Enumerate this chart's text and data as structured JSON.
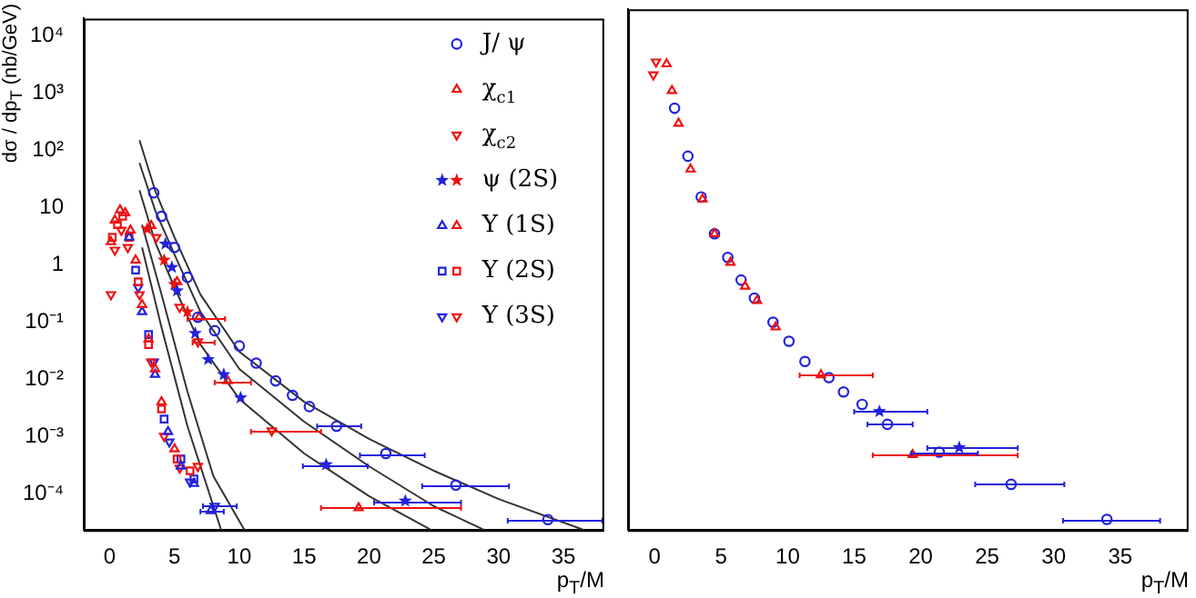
{
  "chart_data": [
    {
      "type": "scatter",
      "ylabel": "dσ / dp$_{T}$ (nb/GeV)",
      "xlabel": "p$_{T}$/M",
      "log": "y",
      "legend": "top right",
      "xlim": [
        -2,
        38
      ],
      "xticks": [
        0,
        5,
        10,
        15,
        20,
        25,
        30,
        35
      ],
      "ylim": [
        2.3e-05,
        20000
      ],
      "yticks": [
        {
          "value": 0.0001,
          "label": "10⁻⁴"
        },
        {
          "value": 0.001,
          "label": "10⁻³"
        },
        {
          "value": 0.01,
          "label": "10⁻²"
        },
        {
          "value": 0.1,
          "label": "10⁻¹"
        },
        1,
        10,
        {
          "value": 100,
          "label": "10²"
        },
        {
          "value": 1000,
          "label": "10³"
        },
        {
          "value": 10000,
          "label": "10⁴"
        }
      ],
      "series": [
        {
          "name": "J/ ψ",
          "color": "#2222dd",
          "marker": "circle",
          "x": [
            3.4,
            4,
            5,
            6,
            6.8,
            8.1,
            10,
            11.3,
            12.8,
            14.1,
            15.4,
            17.5,
            21.3,
            26.7,
            33.8
          ],
          "values": [
            18,
            7,
            2,
            0.6,
            0.12,
            0.07,
            0.038,
            0.019,
            0.0093,
            0.0052,
            0.0033,
            0.0015,
            0.0005,
            0.00014,
            3.5e-05
          ],
          "xerrors": [
            null,
            null,
            null,
            null,
            null,
            null,
            null,
            null,
            null,
            null,
            null,
            [
              16,
              19.4
            ],
            [
              19.3,
              24.3
            ],
            [
              24.1,
              30.8
            ],
            [
              30.7,
              38
            ]
          ]
        },
        {
          "name": "χ$_{c1}$",
          "color": "#ee1111",
          "marker": "triangle",
          "x": [
            3.2,
            5.2,
            6.9,
            9.1,
            19.2
          ],
          "values": [
            4.8,
            0.5,
            0.12,
            0.0093,
            5.6e-05
          ],
          "xerrors": [
            null,
            null,
            [
              6,
              8.9
            ],
            [
              8.1,
              10.9
            ],
            [
              16.3,
              27.1
            ]
          ]
        },
        {
          "name": "χ$_{c2}$",
          "color": "#ee1111",
          "marker": "triangle-down",
          "x": [
            3.6,
            5.4,
            6.8,
            12.5
          ],
          "values": [
            3,
            0.18,
            0.045,
            0.00125
          ],
          "xerrors": [
            null,
            null,
            [
              6.4,
              8.1
            ],
            [
              10.9,
              16.3
            ]
          ]
        },
        {
          "name": "ψ (2S)",
          "color": "#ee1111",
          "marker": "star",
          "x": [
            2.9,
            4.2,
            5,
            6
          ],
          "values": [
            4.2,
            1.2,
            0.45,
            0.15
          ]
        },
        {
          "color": "#2222dd",
          "marker": "star",
          "x": [
            4.3,
            4.8,
            5.2,
            6.6,
            7.6,
            8.8,
            10.1,
            16.7,
            22.8
          ],
          "values": [
            2.3,
            0.9,
            0.35,
            0.063,
            0.022,
            0.012,
            0.0047,
            0.00032,
            7.4e-05
          ],
          "xerrors": [
            null,
            null,
            null,
            null,
            null,
            null,
            null,
            [
              14.9,
              19.9
            ],
            [
              20.4,
              27.1
            ]
          ]
        },
        {
          "name": "Υ (1S)",
          "color": "#ee1111",
          "marker": "triangle",
          "x": [
            0.1,
            0.4,
            0.8,
            1.2,
            1.6,
            2,
            2.5,
            3,
            3.5,
            4,
            5
          ],
          "values": [
            2.5,
            6,
            9,
            8,
            4,
            1.2,
            0.2,
            0.05,
            0.015,
            0.004,
            0.0006
          ]
        },
        {
          "color": "#2222dd",
          "marker": "triangle",
          "x": [
            1.5,
            2.5,
            3.5,
            4.5,
            5.5,
            6.5,
            7.8
          ],
          "values": [
            3,
            0.15,
            0.012,
            0.0012,
            0.0003,
            0.00015,
            5e-05
          ],
          "xerrors": [
            null,
            null,
            null,
            null,
            null,
            null,
            [
              7,
              8.8
            ]
          ]
        },
        {
          "name": "Υ (2S)",
          "color": "#ee1111",
          "marker": "square",
          "x": [
            0.2,
            0.6,
            1,
            1.5,
            2.2,
            3,
            4,
            5.2,
            6.2
          ],
          "values": [
            3,
            5,
            7,
            3,
            0.5,
            0.04,
            0.003,
            0.0004,
            0.00025
          ]
        },
        {
          "color": "#2222dd",
          "marker": "square",
          "x": [
            2,
            3,
            4.2,
            5.5,
            6.5
          ],
          "values": [
            0.8,
            0.06,
            0.002,
            0.0004,
            0.00018
          ]
        },
        {
          "name": "Υ (3S)",
          "color": "#ee1111",
          "marker": "triangle-down",
          "x": [
            0.1,
            0.4,
            0.9,
            1.4,
            2.3,
            3.2,
            4.2,
            5.4,
            6.8
          ],
          "values": [
            0.3,
            1.8,
            4,
            2,
            0.3,
            0.02,
            0.001,
            0.00028,
            0.0003
          ]
        },
        {
          "color": "#2222dd",
          "marker": "triangle-down",
          "x": [
            2.2,
            3.4,
            4.6,
            6.2,
            8.1
          ],
          "values": [
            0.4,
            0.02,
            0.0008,
            0.00016,
            6e-05
          ],
          "xerrors": [
            null,
            null,
            null,
            null,
            [
              7.2,
              9.8
            ]
          ]
        },
        {
          "type": "line",
          "color": "#333333",
          "marker": "none",
          "x": [
            2.3,
            3.5,
            5,
            7,
            10,
            15,
            20,
            25,
            30,
            36.6
          ],
          "values": [
            150,
            20,
            3,
            0.3,
            0.03,
            0.004,
            0.0009,
            0.00025,
            8e-05,
            2.3e-05
          ]
        },
        {
          "type": "line",
          "color": "#333333",
          "marker": "none",
          "x": [
            2.3,
            3.5,
            5,
            7,
            10,
            15,
            20,
            25,
            28.9
          ],
          "values": [
            60,
            9,
            1.5,
            0.15,
            0.015,
            0.0018,
            0.0003,
            6e-05,
            2.3e-05
          ]
        },
        {
          "type": "line",
          "color": "#333333",
          "marker": "none",
          "x": [
            2.3,
            3.5,
            5,
            7,
            10,
            15,
            20,
            24.8
          ],
          "values": [
            20,
            2.5,
            0.4,
            0.04,
            0.0045,
            0.0005,
            9e-05,
            2.3e-05
          ]
        },
        {
          "type": "line",
          "color": "#333333",
          "marker": "none",
          "x": [
            2.5,
            4,
            6,
            8,
            10.4
          ],
          "values": [
            5,
            0.3,
            0.006,
            0.0002,
            2.3e-05
          ]
        },
        {
          "type": "line",
          "color": "#333333",
          "marker": "none",
          "x": [
            2.5,
            4,
            6,
            8.6
          ],
          "values": [
            2,
            0.08,
            0.0015,
            2.3e-05
          ]
        }
      ]
    },
    {
      "type": "scatter",
      "xlabel": "p$_{T}$/M",
      "log": "y",
      "tick_labels": "x",
      "xlim": [
        -2,
        40
      ],
      "xticks": [
        0,
        5,
        10,
        15,
        20,
        25,
        30,
        35
      ],
      "ylim": [
        2.3e-05,
        20000
      ],
      "yticks": [
        {
          "value": 0.0001,
          "label": null
        },
        {
          "value": 0.001,
          "label": null
        },
        {
          "value": 0.01,
          "label": null
        },
        {
          "value": 0.1,
          "label": null
        },
        {
          "value": 1,
          "label": null
        },
        {
          "value": 10,
          "label": null
        },
        {
          "value": 100,
          "label": null
        },
        {
          "value": 1000,
          "label": null
        },
        {
          "value": 10000,
          "label": null
        }
      ],
      "series": [
        {
          "color": "#ee1111",
          "marker": "triangle",
          "x": [
            0.9,
            1.3,
            1.8,
            2.7,
            3.6,
            4.5,
            5.7,
            6.8,
            7.7,
            9.1,
            12.5,
            19.4
          ],
          "values": [
            2300,
            800,
            220,
            36,
            11,
            2.8,
            0.9,
            0.35,
            0.2,
            0.07,
            0.0106,
            0.00045
          ],
          "xerrors": [
            null,
            null,
            null,
            null,
            null,
            null,
            null,
            null,
            null,
            null,
            [
              10.9,
              16.4
            ],
            [
              16.4,
              27.3
            ]
          ]
        },
        {
          "color": "#ee1111",
          "marker": "triangle-down",
          "x": [
            -0.1,
            0.1
          ],
          "values": [
            1500,
            2500
          ]
        },
        {
          "color": "#2222dd",
          "marker": "circle",
          "x": [
            1.5,
            2.5,
            3.5,
            4.5,
            5.5,
            6.5,
            7.5,
            8.9,
            10.1,
            11.3,
            13.1,
            14.2,
            15.6,
            17.5,
            21.4,
            26.8,
            34
          ],
          "values": [
            400,
            60,
            12,
            2.8,
            1.1,
            0.45,
            0.22,
            0.085,
            0.04,
            0.018,
            0.0095,
            0.0054,
            0.0033,
            0.0015,
            0.0005,
            0.00014,
            3.5e-05
          ],
          "xerrors": [
            null,
            null,
            null,
            null,
            null,
            null,
            null,
            null,
            null,
            null,
            null,
            null,
            null,
            [
              16,
              19.4
            ],
            [
              19.3,
              24.3
            ],
            [
              24.1,
              30.8
            ],
            [
              30.7,
              38
            ]
          ]
        },
        {
          "color": "#2222dd",
          "marker": "star",
          "x": [
            16.9,
            22.9
          ],
          "values": [
            0.0025,
            0.0006
          ],
          "xerrors": [
            [
              15,
              20.5
            ],
            [
              20.5,
              27.3
            ]
          ]
        }
      ]
    }
  ]
}
